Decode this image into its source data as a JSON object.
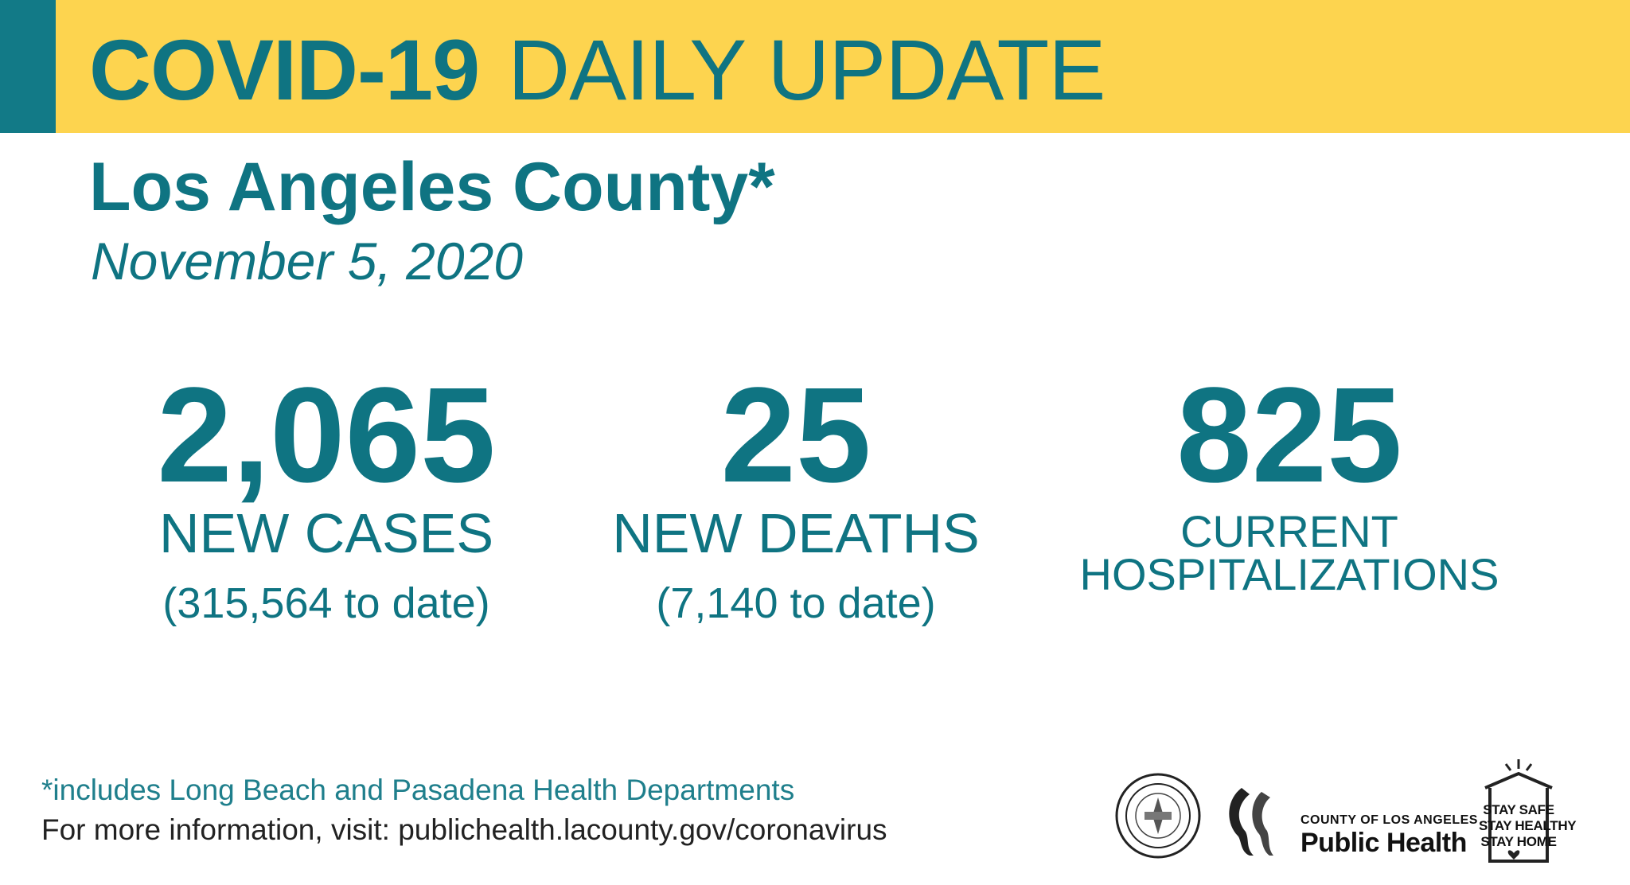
{
  "banner": {
    "title_strong": "COVID-19",
    "title_light": "DAILY UPDATE",
    "background_color": "#fdd44f",
    "accent_color": "#127a87"
  },
  "header": {
    "county": "Los Angeles County*",
    "date": "November 5, 2020"
  },
  "stats": [
    {
      "value": "2,065",
      "label": "NEW CASES",
      "sub": "(315,564 to date)"
    },
    {
      "value": "25",
      "label": "NEW DEATHS",
      "sub": "(7,140 to date)"
    },
    {
      "value": "825",
      "label_line1": "CURRENT",
      "label_line2": "HOSPITALIZATIONS"
    }
  ],
  "footer": {
    "footnote": "*includes Long Beach and Pasadena Health Departments",
    "more_info": "For more information, visit: publichealth.lacounty.gov/coronavirus"
  },
  "logos": {
    "seal_icon": "county-seal-icon",
    "public_health_county": "COUNTY OF LOS ANGELES",
    "public_health_name": "Public Health",
    "stay_lines": [
      "STAY SAFE",
      "STAY HEALTHY",
      "STAY HOME"
    ]
  },
  "colors": {
    "primary_teal": "#0f7482",
    "text_dark": "#222222"
  }
}
